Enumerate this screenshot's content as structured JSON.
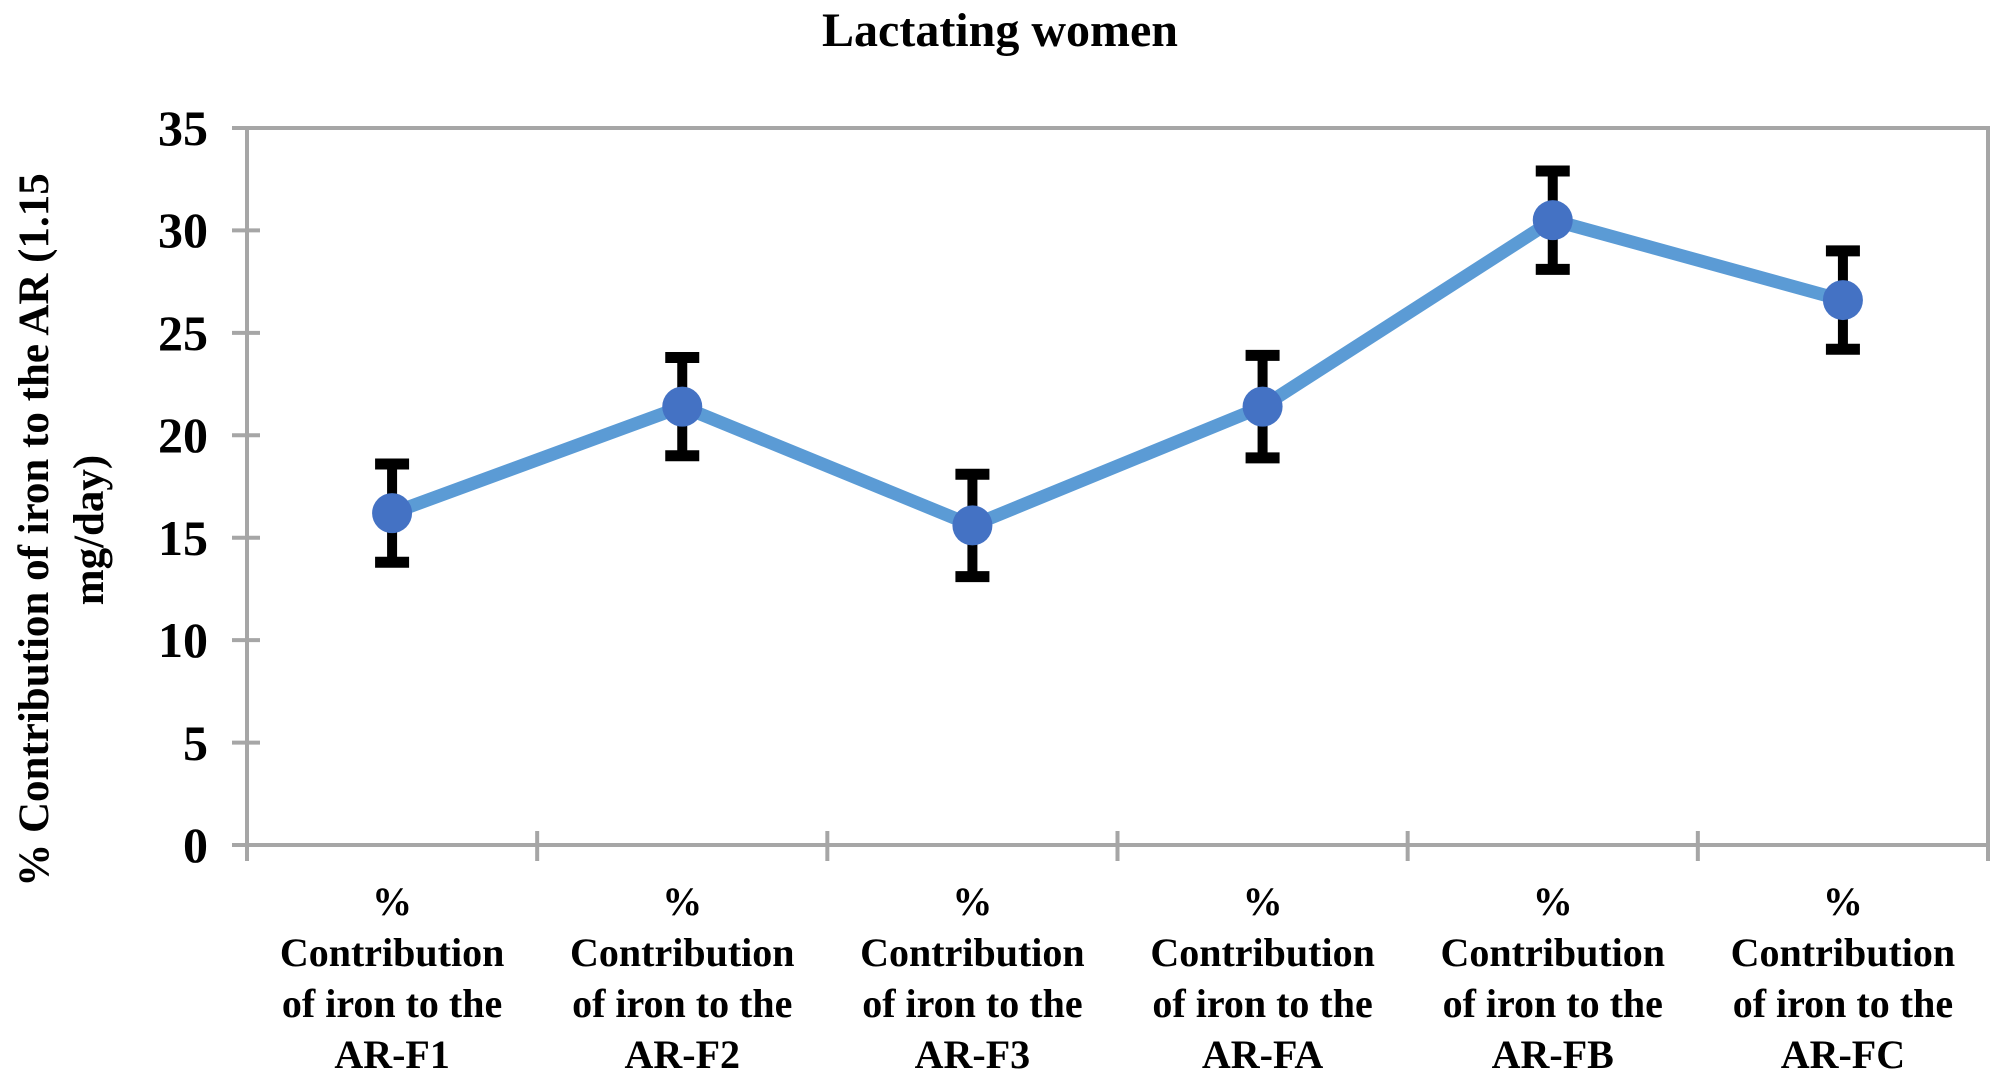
{
  "chart_data": {
    "type": "line",
    "title": "Lactating women",
    "ylabel": "% Contribution of iron to the AR (1.15 mg/day)",
    "ylabel_display_lines": [
      "% Contribution of iron to the AR (1.15",
      "mg/day)"
    ],
    "xlabel": "",
    "categories": [
      "% Contribution of iron to the AR-F1",
      "% Contribution of iron to the AR-F2",
      "% Contribution of iron to the AR-F3",
      "% Contribution of iron to the AR-FA",
      "% Contribution of iron to the AR-FB",
      "% Contribution of iron to the AR-FC"
    ],
    "category_display_lines": [
      [
        "%",
        "Contribution",
        "of iron to the",
        "AR-F1"
      ],
      [
        "%",
        "Contribution",
        "of iron to the",
        "AR-F2"
      ],
      [
        "%",
        "Contribution",
        "of iron to the",
        "AR-F3"
      ],
      [
        "%",
        "Contribution",
        "of iron to the",
        "AR-FA"
      ],
      [
        "%",
        "Contribution",
        "of iron to the",
        "AR-FB"
      ],
      [
        "%",
        "Contribution",
        "of iron to the",
        "AR-FC"
      ]
    ],
    "series": [
      {
        "values": [
          16.2,
          21.4,
          15.6,
          21.4,
          30.5,
          26.6
        ],
        "error_bars": [
          2.4,
          2.4,
          2.5,
          2.5,
          2.4,
          2.4
        ]
      }
    ],
    "ylim": [
      0,
      35
    ],
    "yticks": [
      0,
      5,
      10,
      15,
      20,
      25,
      30,
      35
    ],
    "grid": false,
    "legend": false,
    "marker_style": "circle",
    "colors": {
      "line": "#5B9BD5",
      "marker": "#4472C4",
      "error_bar": "#000000",
      "axis": "#A6A6A6",
      "text": "#000000",
      "background": "#FFFFFF"
    }
  }
}
